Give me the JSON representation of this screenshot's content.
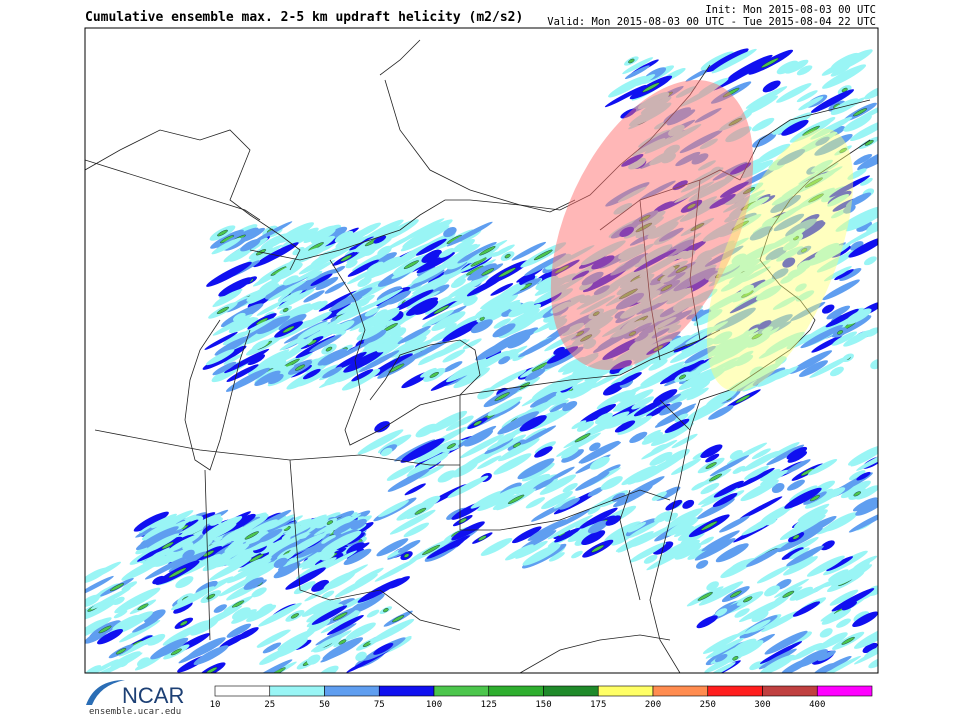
{
  "header": {
    "title": "Cumulative ensemble max. 2-5 km updraft helicity (m2/s2)",
    "init": "Init: Mon 2015-08-03 00 UTC",
    "valid": "Valid: Mon 2015-08-03 00 UTC - Tue 2015-08-04 22 UTC"
  },
  "colorbar": {
    "ticks": [
      10,
      25,
      50,
      75,
      100,
      125,
      150,
      175,
      200,
      250,
      300,
      400
    ],
    "colors": [
      "#ffffff",
      "#99f5f5",
      "#5f9ef0",
      "#1010f0",
      "#4cc64c",
      "#2fae2f",
      "#1f8a2a",
      "#ffff66",
      "#ff8c50",
      "#ff1e1e",
      "#c04040",
      "#ff00ff"
    ]
  },
  "logo": {
    "name": "NCAR",
    "url": "ensemble.ucar.edu"
  }
}
